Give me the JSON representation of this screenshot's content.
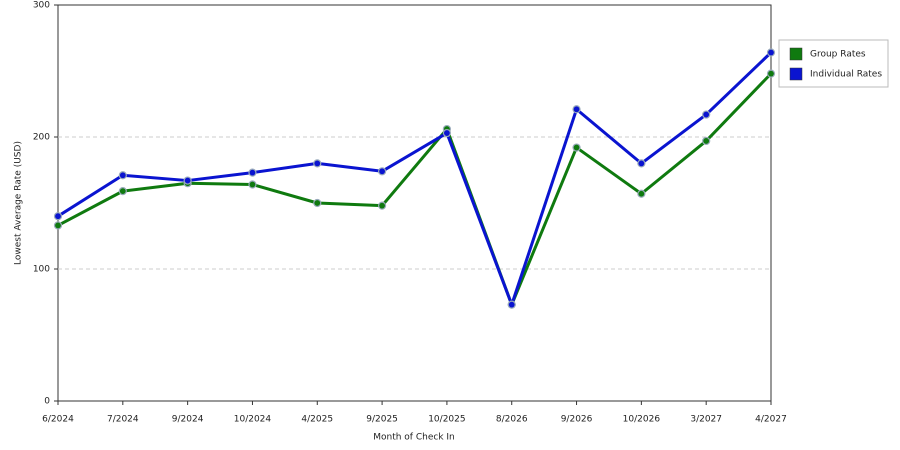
{
  "chart_data": {
    "type": "line",
    "x_label": "Month of Check In",
    "y_label": "Lowest Average Rate (USD)",
    "categories": [
      "6/2024",
      "7/2024",
      "9/2024",
      "10/2024",
      "4/2025",
      "9/2025",
      "10/2025",
      "8/2026",
      "9/2026",
      "10/2026",
      "3/2027",
      "4/2027"
    ],
    "series": [
      {
        "name": "Group Rates",
        "color": "#0f7a0f",
        "values": [
          133,
          159,
          165,
          164,
          150,
          148,
          206,
          73,
          192,
          157,
          197,
          248
        ]
      },
      {
        "name": "Individual Rates",
        "color": "#0a14d0",
        "values": [
          140,
          171,
          167,
          173,
          180,
          174,
          203,
          73,
          221,
          180,
          217,
          264
        ]
      }
    ],
    "ylim": [
      0,
      300
    ],
    "yticks": [
      0,
      100,
      200,
      300
    ],
    "grid": true,
    "legend": "right"
  }
}
